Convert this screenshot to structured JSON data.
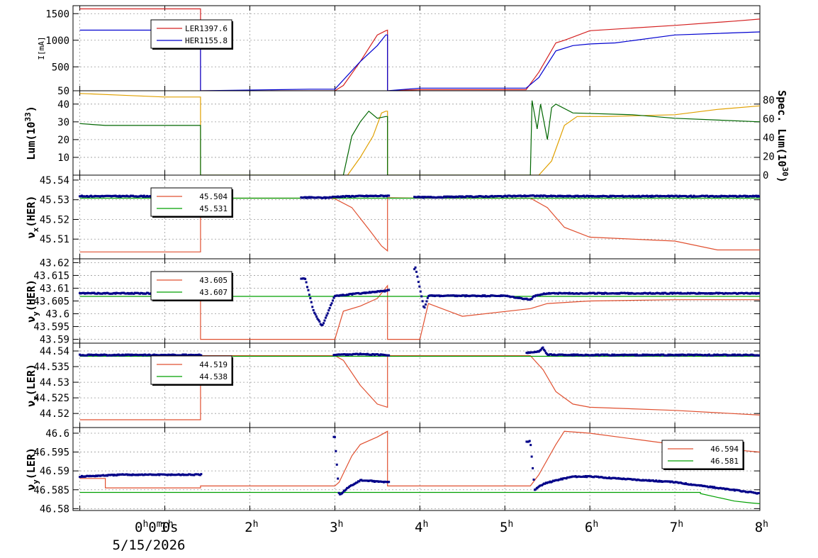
{
  "chart_data": [
    {
      "type": "line",
      "panel": "current",
      "ylabel": "I[mA]",
      "ylim": [
        50,
        1650
      ],
      "yticks": [
        50,
        500,
        1000,
        1500
      ],
      "ytick_labels": [
        "50",
        "500",
        "1000",
        "1500"
      ],
      "legend": {
        "placement": "top-left",
        "entries": [
          {
            "name": "LER",
            "value": "1397.6"
          },
          {
            "name": "HER",
            "value": "1155.8"
          }
        ]
      },
      "series": [
        {
          "name": "LER",
          "color": "#d42020",
          "x": [
            0,
            1.42,
            1.42,
            3.0,
            3.1,
            3.3,
            3.5,
            3.6,
            3.62,
            3.62,
            4.0,
            5.25,
            5.4,
            5.6,
            5.7,
            6.0,
            7.0,
            7.7,
            8.0
          ],
          "y": [
            1590,
            1590,
            50,
            50,
            150,
            600,
            1100,
            1180,
            1190,
            50,
            70,
            70,
            400,
            950,
            1000,
            1180,
            1280,
            1360,
            1398
          ]
        },
        {
          "name": "HER",
          "color": "#0000d0",
          "x": [
            0,
            1.42,
            1.42,
            2.7,
            3.0,
            3.3,
            3.5,
            3.6,
            3.62,
            3.62,
            4.0,
            5.25,
            5.4,
            5.6,
            5.8,
            6.0,
            6.3,
            7.0,
            8.0
          ],
          "y": [
            1190,
            1190,
            50,
            80,
            80,
            600,
            900,
            1100,
            1100,
            50,
            100,
            100,
            300,
            800,
            900,
            930,
            950,
            1100,
            1156
          ]
        }
      ]
    },
    {
      "type": "line",
      "panel": "luminosity",
      "ylabel": "Lum(10",
      "ylabel_sup": "33",
      "ylabel_end": ")",
      "ylim": [
        0,
        47.5
      ],
      "yticks": [
        10,
        20,
        30,
        40
      ],
      "ytick_labels": [
        "10",
        "20",
        "30",
        "40"
      ],
      "y2label": "Spec. Lum(10",
      "y2label_sup": "30",
      "y2label_end": ")",
      "y2ticks": [
        0,
        20,
        40,
        60,
        80
      ],
      "y2tick_labels": [
        "0",
        "20",
        "40",
        "60",
        "80"
      ],
      "series": [
        {
          "color": "#e0a000",
          "x": [
            0,
            0.5,
            1.0,
            1.42,
            1.42,
            3.15,
            3.3,
            3.45,
            3.55,
            3.6,
            3.62,
            3.62,
            5.4,
            5.55,
            5.7,
            5.85,
            6.2,
            7.0,
            7.5,
            8.0
          ],
          "y": [
            46,
            45,
            44,
            44,
            0,
            0,
            10,
            22,
            35,
            36,
            36,
            0,
            0,
            8,
            28,
            33,
            33,
            34,
            37,
            39
          ]
        },
        {
          "color": "#006600",
          "x": [
            0,
            0.3,
            1.0,
            1.42,
            1.42,
            3.1,
            3.2,
            3.3,
            3.4,
            3.5,
            3.6,
            3.62,
            3.62,
            5.3,
            5.32,
            5.38,
            5.42,
            5.5,
            5.55,
            5.6,
            5.8,
            6.5,
            7.0,
            8.0
          ],
          "y": [
            29,
            28,
            28,
            28,
            0,
            0,
            22,
            30,
            36,
            32,
            33,
            33,
            0,
            0,
            42,
            26,
            40,
            20,
            38,
            40,
            35,
            34,
            32,
            30
          ]
        }
      ]
    },
    {
      "type": "line",
      "panel": "nux_her",
      "ylabel": "ν",
      "ylabel_sub": "x",
      "ylabel_end": "(HER)",
      "ylim": [
        45.5,
        45.5425
      ],
      "yticks": [
        45.51,
        45.52,
        45.53,
        45.54
      ],
      "ytick_labels": [
        "45.51",
        "45.52",
        "45.53",
        "45.54"
      ],
      "legend": {
        "placement": "top-left",
        "entries": [
          {
            "value": "45.504"
          },
          {
            "value": "45.531"
          }
        ]
      },
      "series": [
        {
          "color": "#e05030",
          "x": [
            0,
            1.42,
            1.42,
            2.9,
            3.0,
            3.2,
            3.4,
            3.55,
            3.62,
            3.62,
            4.0,
            5.3,
            5.5,
            5.7,
            6.0,
            7.0,
            7.5,
            8.0
          ],
          "y": [
            45.5035,
            45.5035,
            45.5308,
            45.5308,
            45.5305,
            45.526,
            45.515,
            45.5065,
            45.504,
            45.531,
            45.5308,
            45.5308,
            45.526,
            45.516,
            45.511,
            45.509,
            45.5045,
            45.5045
          ]
        },
        {
          "color": "#00a000",
          "x": [
            0,
            8.0
          ],
          "y": [
            45.5308,
            45.5308
          ]
        },
        {
          "color": "#000088",
          "kind": "scatter",
          "x": [
            0,
            0.5,
            1.0,
            1.42,
            2.9,
            3.0,
            3.2,
            3.62,
            3.95,
            4.0,
            4.5,
            5.0,
            5.3,
            5.6,
            6.0,
            7.0,
            8.0
          ],
          "y": [
            45.5318,
            45.5318,
            45.5318,
            45.5318,
            45.531,
            45.5315,
            45.5318,
            45.532,
            45.5315,
            45.5312,
            45.5315,
            45.5318,
            45.532,
            45.5318,
            45.5318,
            45.5318,
            45.5318
          ]
        }
      ]
    },
    {
      "type": "line",
      "panel": "nuy_her",
      "ylabel": "ν",
      "ylabel_sub": "y",
      "ylabel_end": "(HER)",
      "ylim": [
        43.5885,
        43.6215
      ],
      "yticks": [
        43.59,
        43.595,
        43.6,
        43.605,
        43.61,
        43.615,
        43.62
      ],
      "ytick_labels": [
        "43.59",
        "43.595",
        "43.6",
        "43.605",
        "43.61",
        "43.615",
        "43.62"
      ],
      "legend": {
        "placement": "top-left",
        "entries": [
          {
            "value": "43.605"
          },
          {
            "value": "43.607"
          }
        ]
      },
      "series": [
        {
          "color": "#e05030",
          "x": [
            0,
            1.42,
            1.42,
            3.0,
            3.1,
            3.3,
            3.5,
            3.62,
            3.62,
            4.0,
            4.1,
            4.5,
            5.3,
            5.5,
            6.0,
            7.0,
            8.0
          ],
          "y": [
            43.608,
            43.608,
            43.59,
            43.59,
            43.601,
            43.603,
            43.606,
            43.611,
            43.59,
            43.59,
            43.604,
            43.599,
            43.602,
            43.604,
            43.605,
            43.6055,
            43.6055
          ]
        },
        {
          "color": "#00a000",
          "x": [
            0,
            8.0
          ],
          "y": [
            43.6068,
            43.6068
          ]
        },
        {
          "color": "#000088",
          "kind": "scatter",
          "x": [
            0,
            0.5,
            1.0,
            1.42,
            2.65,
            2.75,
            2.85,
            2.95,
            3.0,
            3.3,
            3.62,
            3.95,
            4.05,
            4.1,
            4.5,
            5.0,
            5.3,
            5.35,
            5.5,
            6.0,
            7.0,
            8.0
          ],
          "y": [
            43.608,
            43.608,
            43.608,
            43.608,
            43.614,
            43.601,
            43.595,
            43.603,
            43.607,
            43.608,
            43.609,
            43.618,
            43.602,
            43.607,
            43.607,
            43.607,
            43.6055,
            43.607,
            43.608,
            43.608,
            43.608,
            43.608
          ]
        }
      ]
    },
    {
      "type": "line",
      "panel": "nux_ler",
      "ylabel": "ν",
      "ylabel_sub": "x",
      "ylabel_end": "(LER)",
      "ylim": [
        44.5155,
        44.5425
      ],
      "yticks": [
        44.52,
        44.525,
        44.53,
        44.535,
        44.54
      ],
      "ytick_labels": [
        "44.52",
        "44.525",
        "44.53",
        "44.535",
        "44.54"
      ],
      "legend": {
        "placement": "top-left",
        "entries": [
          {
            "value": "44.519"
          },
          {
            "value": "44.538"
          }
        ]
      },
      "series": [
        {
          "color": "#e05030",
          "x": [
            0,
            1.42,
            1.42,
            3.0,
            3.1,
            3.3,
            3.5,
            3.62,
            3.62,
            5.3,
            5.45,
            5.6,
            5.8,
            6.0,
            7.0,
            8.0
          ],
          "y": [
            44.518,
            44.518,
            44.5385,
            44.5385,
            44.537,
            44.529,
            44.523,
            44.522,
            44.5385,
            44.5385,
            44.534,
            44.527,
            44.523,
            44.522,
            44.521,
            44.5195
          ]
        },
        {
          "color": "#00a000",
          "x": [
            0,
            8.0
          ],
          "y": [
            44.5383,
            44.5383
          ]
        },
        {
          "color": "#000088",
          "kind": "scatter",
          "x": [
            0,
            0.5,
            1.0,
            1.42,
            2.55,
            3.0,
            3.3,
            3.62,
            5.3,
            5.4,
            5.45,
            5.5,
            6.0,
            7.0,
            8.0
          ],
          "y": [
            44.5387,
            44.5387,
            44.5387,
            44.5387,
            44.5405,
            44.5388,
            44.539,
            44.5387,
            44.5395,
            44.5398,
            44.541,
            44.5388,
            44.5387,
            44.5387,
            44.5387
          ]
        }
      ]
    },
    {
      "type": "line",
      "panel": "nuy_ler",
      "ylabel": "ν",
      "ylabel_sub": "y",
      "ylabel_end": "(LER)",
      "ylim": [
        46.5795,
        46.6015
      ],
      "yticks": [
        46.58,
        46.585,
        46.59,
        46.595,
        46.6
      ],
      "ytick_labels": [
        "46.58",
        "46.585",
        "46.59",
        "46.595",
        "46.6"
      ],
      "legend": {
        "placement": "top-right",
        "entries": [
          {
            "value": "46.594"
          },
          {
            "value": "46.581"
          }
        ]
      },
      "series": [
        {
          "color": "#e05030",
          "x": [
            0,
            0.3,
            0.3,
            1.42,
            1.42,
            3.0,
            3.05,
            3.2,
            3.3,
            3.5,
            3.62,
            3.62,
            5.3,
            5.4,
            5.6,
            5.7,
            6.0,
            7.0,
            8.0
          ],
          "y": [
            46.588,
            46.588,
            46.5855,
            46.5855,
            46.586,
            46.586,
            46.587,
            46.594,
            46.597,
            46.599,
            46.6005,
            46.586,
            46.586,
            46.589,
            46.597,
            46.6005,
            46.6,
            46.597,
            46.595
          ]
        },
        {
          "color": "#00a000",
          "x": [
            0,
            7.3,
            7.3,
            7.5,
            7.7,
            7.9,
            8.0
          ],
          "y": [
            46.5843,
            46.5843,
            46.584,
            46.583,
            46.582,
            46.5815,
            46.5813
          ]
        },
        {
          "color": "#000088",
          "kind": "scatter",
          "x": [
            0,
            0.5,
            1.0,
            1.42,
            3.0,
            3.05,
            3.15,
            3.3,
            3.62,
            5.3,
            5.35,
            5.45,
            5.6,
            5.8,
            6.0,
            7.0,
            7.5,
            8.0
          ],
          "y": [
            46.5885,
            46.589,
            46.589,
            46.589,
            46.599,
            46.5835,
            46.5855,
            46.5875,
            46.587,
            46.598,
            46.585,
            46.5865,
            46.5875,
            46.5885,
            46.5885,
            46.587,
            46.5855,
            46.584
          ]
        }
      ]
    }
  ],
  "x_axis": {
    "xlim": [
      -0.08,
      8.0
    ],
    "ticks": [
      0,
      1,
      2,
      3,
      4,
      5,
      6,
      7,
      8
    ],
    "tick_labels": [
      {
        "main": "0",
        "h": "h",
        "extra": "0",
        "m": "m",
        "rest": "0s"
      },
      {
        "main": "1",
        "h": "h"
      },
      {
        "main": "2",
        "h": "h"
      },
      {
        "main": "3",
        "h": "h"
      },
      {
        "main": "4",
        "h": "h"
      },
      {
        "main": "5",
        "h": "h"
      },
      {
        "main": "6",
        "h": "h"
      },
      {
        "main": "7",
        "h": "h"
      },
      {
        "main": "8",
        "h": "h"
      }
    ],
    "date_label": "5/15/2026"
  }
}
